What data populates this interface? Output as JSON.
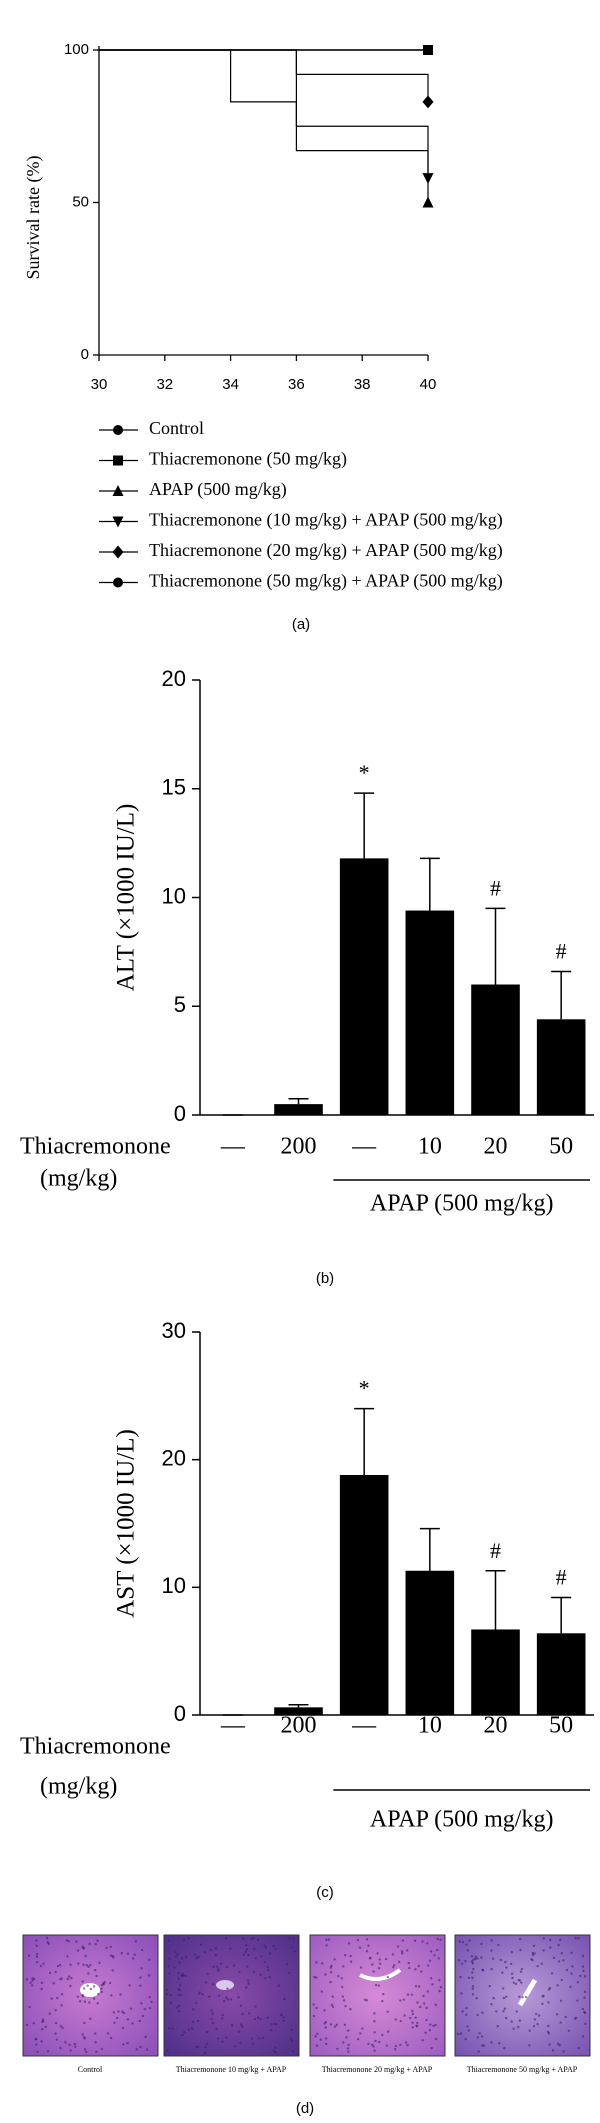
{
  "chart_data": [
    {
      "type": "step",
      "caption": "(a)",
      "ylabel": "Survival rate (%)",
      "x": [
        30,
        34,
        36,
        40
      ],
      "xlim": [
        30,
        40
      ],
      "xticks": [
        30,
        32,
        34,
        36,
        38,
        40
      ],
      "ylim": [
        0,
        100
      ],
      "yticks": [
        0,
        50,
        100
      ],
      "series": [
        {
          "name": "Control",
          "color": "#000000",
          "marker": "circle",
          "values": [
            100,
            100,
            100,
            100
          ]
        },
        {
          "name": "Thiacremonone (50 mg/kg)",
          "color": "#000000",
          "marker": "square",
          "values": [
            100,
            100,
            100,
            100
          ]
        },
        {
          "name": "APAP (500 mg/kg)",
          "color": "#000000",
          "marker": "triangle-up",
          "values": [
            100,
            83,
            67,
            50
          ]
        },
        {
          "name": "Thiacremonone (10 mg/kg) + APAP (500 mg/kg)",
          "color": "#000000",
          "marker": "triangle-down",
          "values": [
            100,
            100,
            75,
            58
          ]
        },
        {
          "name": "Thiacremonone (20 mg/kg) + APAP (500 mg/kg)",
          "color": "#000000",
          "marker": "diamond",
          "values": [
            100,
            100,
            92,
            83
          ]
        },
        {
          "name": "Thiacremonone (50 mg/kg) + APAP (500 mg/kg)",
          "color": "#000000",
          "marker": "circle",
          "values": [
            100,
            100,
            100,
            100
          ]
        }
      ]
    },
    {
      "type": "bar",
      "caption": "(b)",
      "ylabel": "ALT (×1000 IU/L)",
      "xlabel": [
        "Thiacremonone",
        "(mg/kg)"
      ],
      "group_label": "APAP (500 mg/kg)",
      "categories": [
        "—",
        "200",
        "—",
        "10",
        "20",
        "50"
      ],
      "values": [
        0,
        0.5,
        11.8,
        9.4,
        6.0,
        4.4
      ],
      "errors": [
        0,
        0.25,
        3.0,
        2.4,
        3.5,
        2.2
      ],
      "significance": [
        null,
        null,
        "*",
        null,
        "#",
        "#"
      ],
      "color": "#000000",
      "ylim": [
        0,
        20
      ],
      "yticks": [
        0,
        5,
        10,
        15,
        20
      ]
    },
    {
      "type": "bar",
      "caption": "(c)",
      "ylabel": "AST (×1000 IU/L)",
      "xlabel": [
        "Thiacremonone",
        "(mg/kg)"
      ],
      "group_label": "APAP (500 mg/kg)",
      "categories": [
        "—",
        "200",
        "—",
        "10",
        "20",
        "50"
      ],
      "values": [
        0,
        0.6,
        18.8,
        11.3,
        6.7,
        6.4
      ],
      "errors": [
        0,
        0.2,
        5.2,
        3.3,
        4.6,
        2.8
      ],
      "significance": [
        null,
        null,
        "*",
        null,
        "#",
        "#"
      ],
      "color": "#000000",
      "ylim": [
        0,
        30
      ],
      "yticks": [
        0,
        10,
        20,
        30
      ]
    }
  ],
  "panel_d": {
    "caption": "(d)",
    "images": [
      "Control",
      "Thiacremonone 10 mg/kg + APAP",
      "Thiacremonone 20 mg/kg + APAP",
      "Thiacremonone 50 mg/kg + APAP"
    ]
  }
}
